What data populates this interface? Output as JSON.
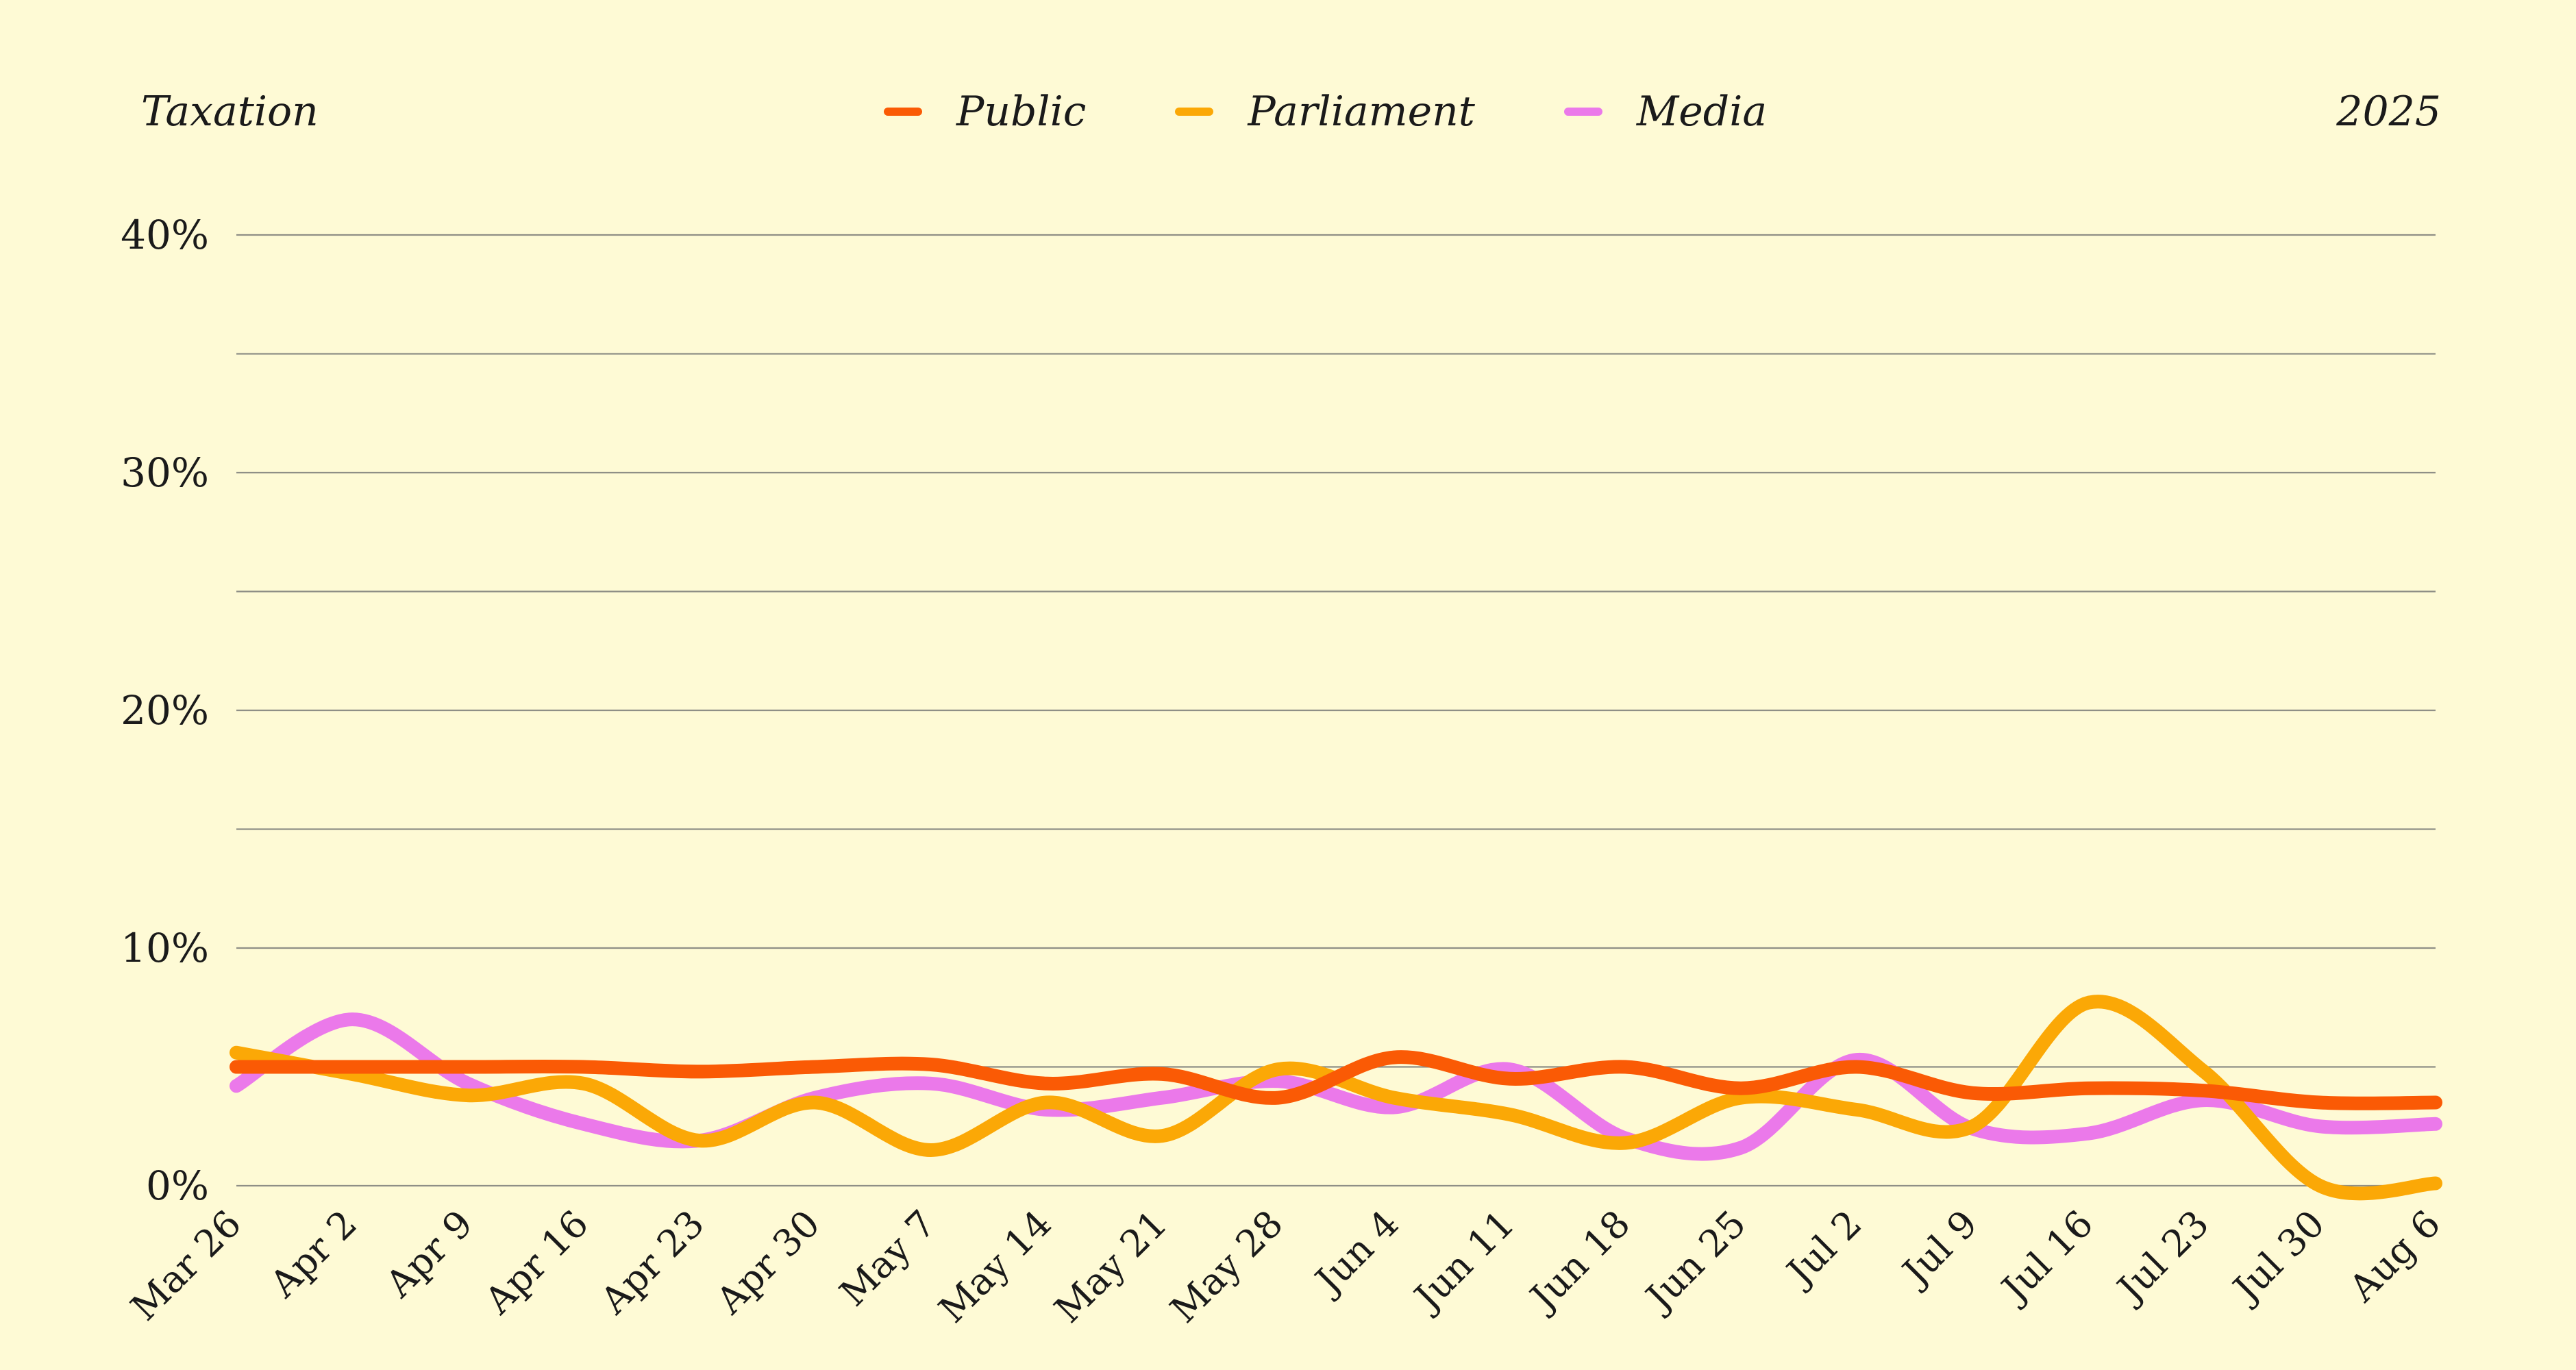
{
  "header": {
    "topic": "Taxation",
    "year": "2025"
  },
  "chart_data": {
    "type": "line",
    "title": "Taxation",
    "xlabel": "",
    "ylabel": "",
    "x": [
      "Mar 26",
      "Apr 2",
      "Apr 9",
      "Apr 16",
      "Apr 23",
      "Apr 30",
      "May 7",
      "May 14",
      "May 21",
      "May 28",
      "Jun 4",
      "Jun 11",
      "Jun 18",
      "Jun 25",
      "Jul 2",
      "Jul 9",
      "Jul 16",
      "Jul 23",
      "Jul 30",
      "Aug 6"
    ],
    "ylim": [
      0,
      40
    ],
    "yticks": [
      0,
      10,
      20,
      30,
      40
    ],
    "ytick_labels": [
      "0%",
      "10%",
      "20%",
      "30%",
      "40%"
    ],
    "grid": true,
    "legend_position": "top-center",
    "series": [
      {
        "name": "Public",
        "color": "#FA5A05",
        "values": [
          5.0,
          5.0,
          5.0,
          5.0,
          4.8,
          5.0,
          5.1,
          4.3,
          4.7,
          3.7,
          5.4,
          4.5,
          5.0,
          4.1,
          5.0,
          3.9,
          4.1,
          4.0,
          3.5,
          3.5
        ]
      },
      {
        "name": "Parliament",
        "color": "#FBA806",
        "values": [
          5.6,
          4.7,
          3.8,
          4.3,
          1.9,
          3.5,
          1.5,
          3.5,
          2.1,
          4.9,
          3.7,
          3.0,
          1.8,
          3.7,
          3.2,
          2.5,
          7.7,
          4.8,
          0.0,
          0.1
        ]
      },
      {
        "name": "Media",
        "color": "#EB79EA",
        "values": [
          4.2,
          7.0,
          4.3,
          2.6,
          1.9,
          3.7,
          4.3,
          3.2,
          3.7,
          4.4,
          3.3,
          4.9,
          2.0,
          1.6,
          5.3,
          2.4,
          2.2,
          3.6,
          2.5,
          2.6
        ]
      }
    ]
  }
}
